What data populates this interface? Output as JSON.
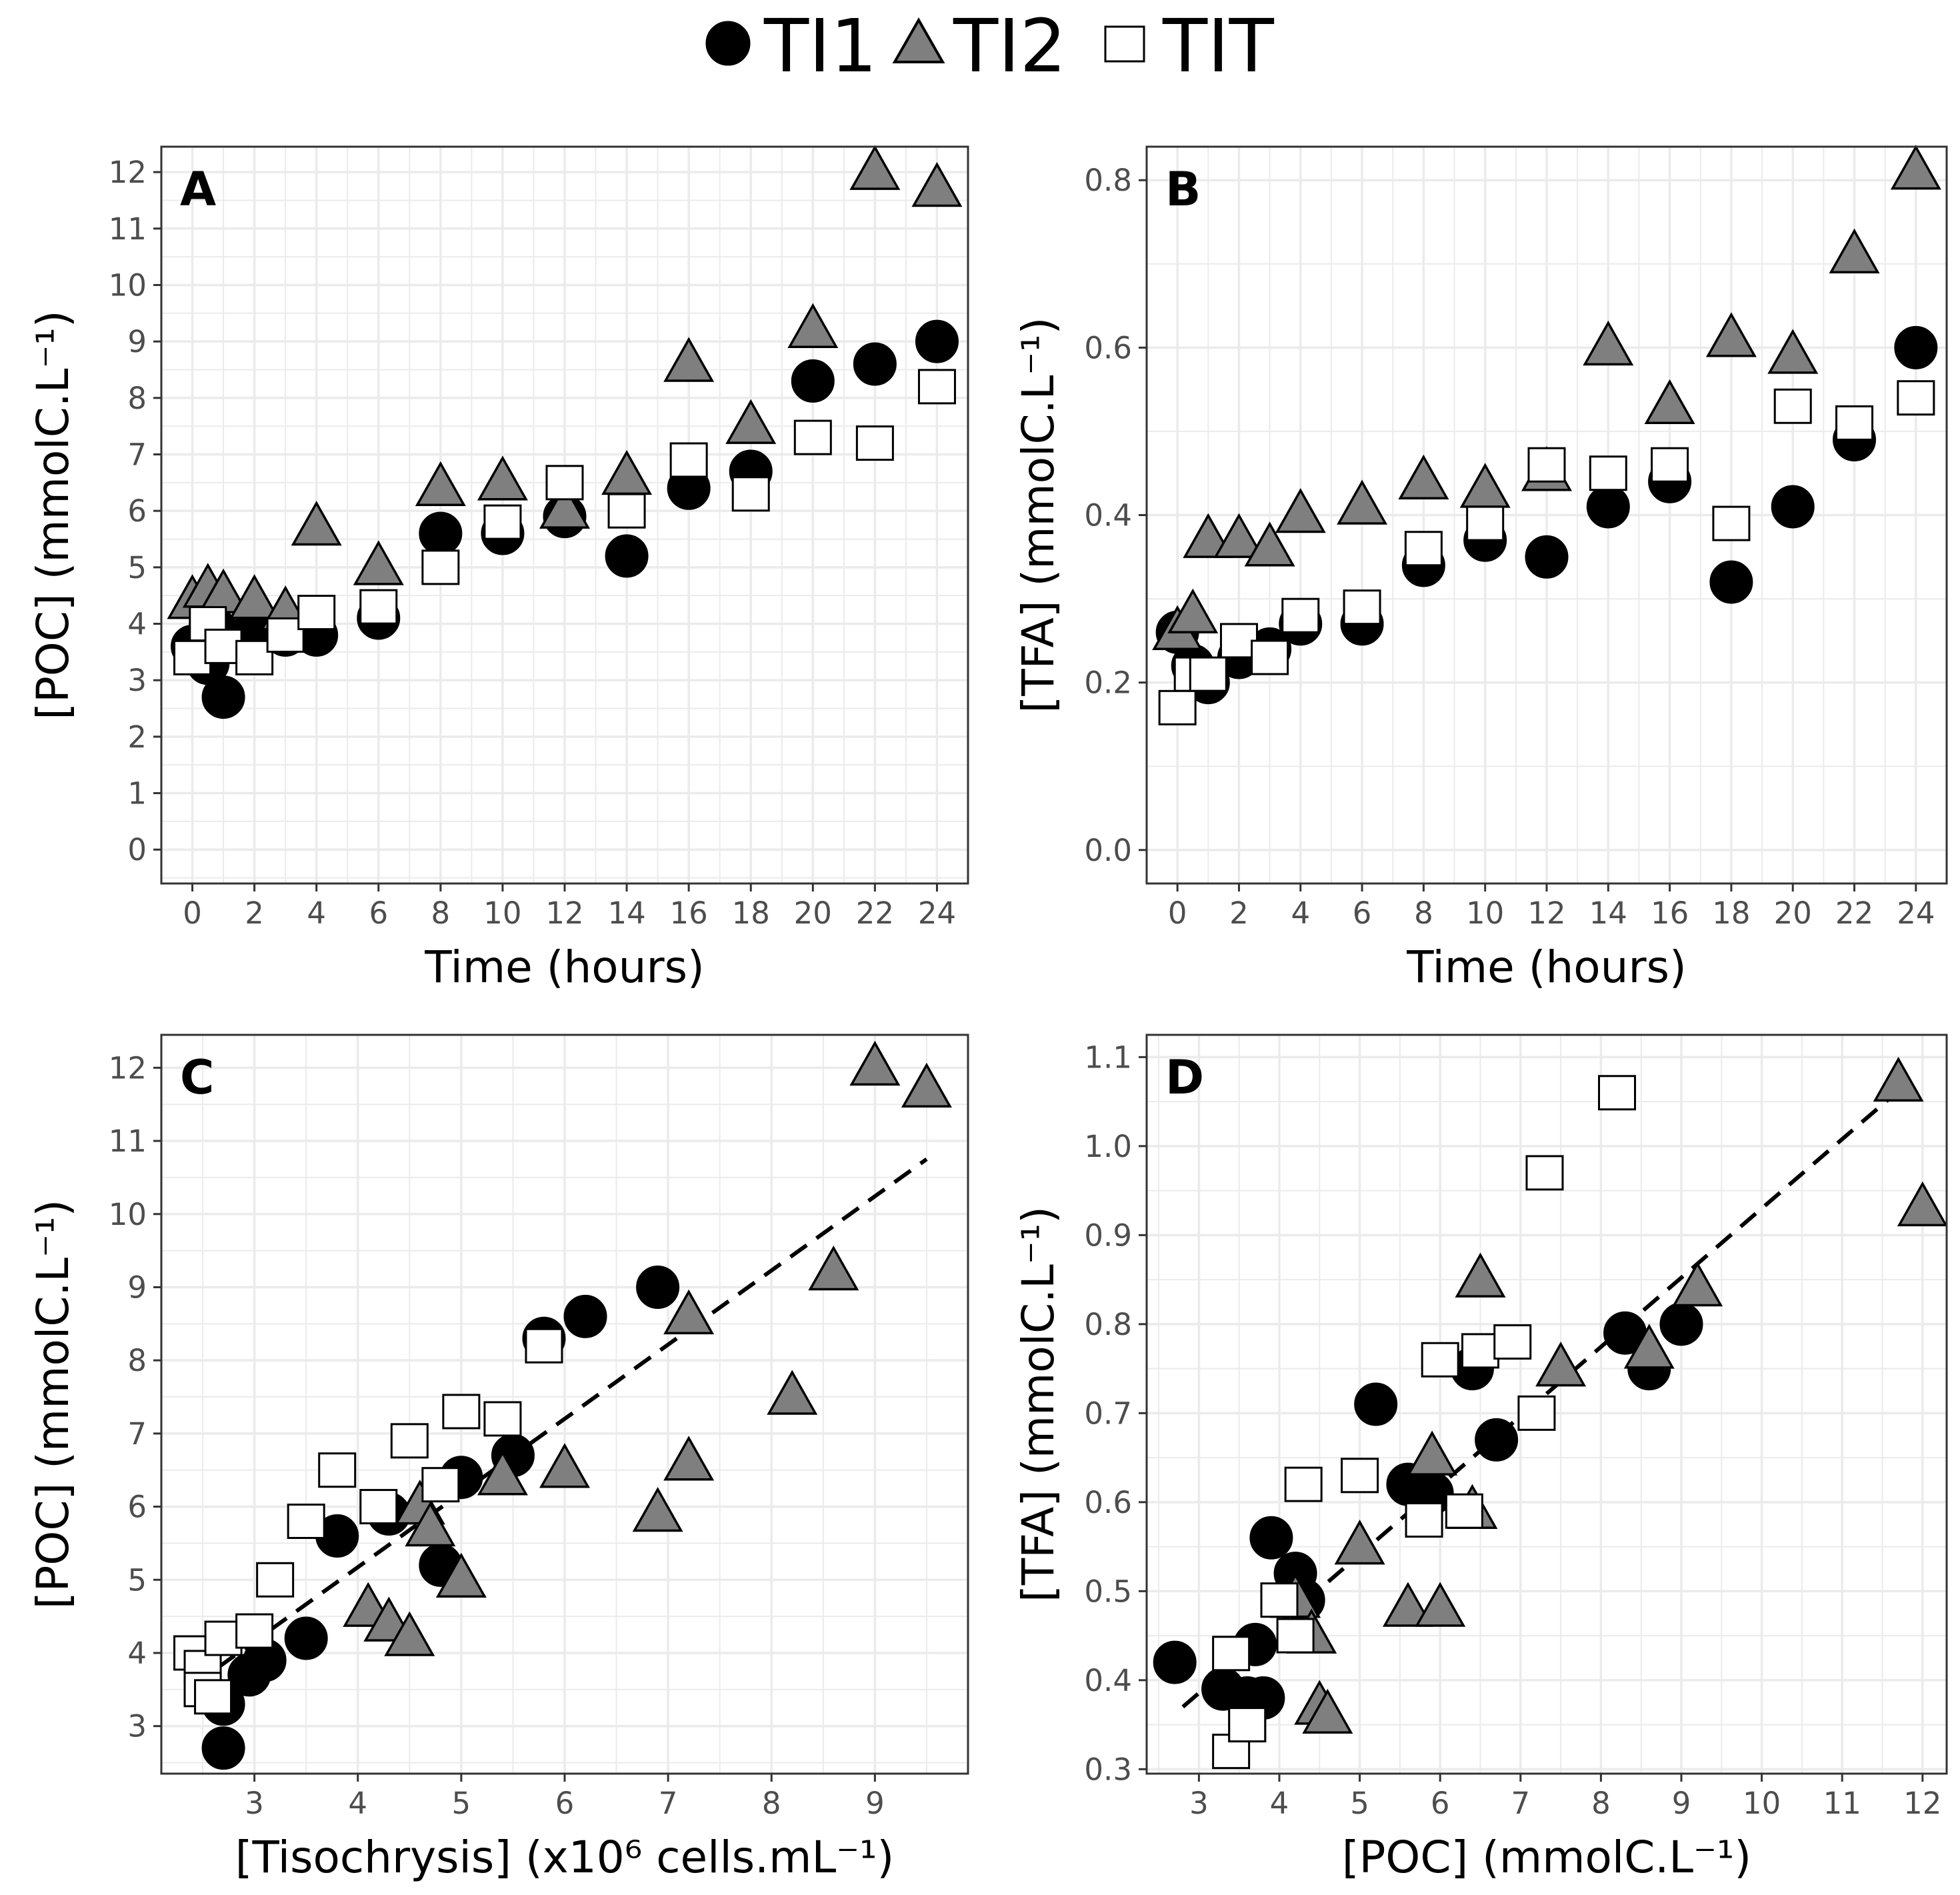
{
  "legend": {
    "entries": [
      {
        "label": "TI1",
        "shape": "circle",
        "fill": "#000000"
      },
      {
        "label": "TI2",
        "shape": "triangle",
        "fill": "#7f7f7f"
      },
      {
        "label": "TIT",
        "shape": "square",
        "fill": "#ffffff"
      }
    ]
  },
  "colors": {
    "grid": "#ebebeb",
    "panel_border": "#333333",
    "tick": "#4d4d4d",
    "stroke": "#000000"
  },
  "chart_data": [
    {
      "panel": "A",
      "type": "scatter",
      "xlabel": "Time (hours)",
      "ylabel": "[POC] (mmolC.L⁻¹)",
      "xlim": [
        -1,
        25
      ],
      "ylim": [
        -0.6,
        12.45
      ],
      "x_ticks": [
        0,
        2,
        4,
        6,
        8,
        10,
        12,
        14,
        16,
        18,
        20,
        22,
        24
      ],
      "y_ticks": [
        0,
        1,
        2,
        3,
        4,
        5,
        6,
        7,
        8,
        9,
        10,
        11,
        12
      ],
      "series": [
        {
          "name": "TI1",
          "x": [
            0,
            0.5,
            0.75,
            1,
            2,
            3,
            4,
            6,
            8,
            10,
            12,
            14,
            16,
            18,
            20,
            22,
            24
          ],
          "y": [
            3.6,
            3.3,
            3.9,
            2.7,
            3.9,
            3.8,
            3.8,
            4.1,
            5.6,
            5.6,
            5.9,
            5.2,
            6.4,
            6.7,
            8.3,
            8.6,
            9.0
          ]
        },
        {
          "name": "TI2",
          "x": [
            0,
            0.5,
            1,
            2,
            3,
            4,
            6,
            8,
            10,
            12,
            14,
            16,
            18,
            20,
            22,
            24
          ],
          "y": [
            4.4,
            4.6,
            4.5,
            4.4,
            4.2,
            5.7,
            5.0,
            6.4,
            6.5,
            6.0,
            6.6,
            8.6,
            7.5,
            9.2,
            12.0,
            11.7
          ]
        },
        {
          "name": "TIT",
          "x": [
            0,
            0.5,
            1,
            2,
            3,
            4,
            6,
            8,
            10,
            12,
            14,
            16,
            18,
            20,
            22,
            24
          ],
          "y": [
            3.4,
            4.0,
            3.6,
            3.4,
            3.8,
            4.2,
            4.3,
            5.0,
            5.8,
            6.5,
            6.0,
            6.9,
            6.3,
            7.3,
            7.2,
            8.2
          ]
        }
      ]
    },
    {
      "panel": "B",
      "type": "scatter",
      "xlabel": "Time (hours)",
      "ylabel": "[TFA] (mmolC.L⁻¹)",
      "xlim": [
        -1,
        25
      ],
      "ylim": [
        -0.04,
        0.84
      ],
      "x_ticks": [
        0,
        2,
        4,
        6,
        8,
        10,
        12,
        14,
        16,
        18,
        20,
        22,
        24
      ],
      "y_ticks": [
        0.0,
        0.2,
        0.4,
        0.6,
        0.8
      ],
      "y_tick_labels": [
        "0.0",
        "0.2",
        "0.4",
        "0.6",
        "0.8"
      ],
      "series": [
        {
          "name": "TI1",
          "x": [
            0,
            0.5,
            1,
            2,
            3,
            4,
            6,
            8,
            10,
            12,
            14,
            16,
            18,
            20,
            22,
            24
          ],
          "y": [
            0.26,
            0.22,
            0.2,
            0.23,
            0.24,
            0.27,
            0.27,
            0.34,
            0.37,
            0.35,
            0.41,
            0.44,
            0.32,
            0.41,
            0.49,
            0.6
          ]
        },
        {
          "name": "TI2",
          "x": [
            0,
            0.5,
            1,
            2,
            3,
            4,
            6,
            8,
            10,
            12,
            14,
            16,
            18,
            20,
            22,
            24
          ],
          "y": [
            0.26,
            0.28,
            0.37,
            0.37,
            0.36,
            0.4,
            0.41,
            0.44,
            0.43,
            0.45,
            0.6,
            0.53,
            0.61,
            0.59,
            0.71,
            0.81
          ]
        },
        {
          "name": "TIT",
          "x": [
            0,
            0.5,
            1,
            2,
            3,
            4,
            6,
            8,
            10,
            12,
            14,
            16,
            18,
            20,
            22,
            24
          ],
          "y": [
            0.17,
            0.21,
            0.21,
            0.25,
            0.23,
            0.28,
            0.29,
            0.36,
            0.39,
            0.46,
            0.45,
            0.46,
            0.39,
            0.53,
            0.51,
            0.54
          ]
        }
      ]
    },
    {
      "panel": "C",
      "type": "scatter",
      "xlabel": "[Tisochrysis] (x10⁶ cells.mL⁻¹)",
      "ylabel": "[POC] (mmolC.L⁻¹)",
      "xlim": [
        2.1,
        9.9
      ],
      "ylim": [
        2.35,
        12.45
      ],
      "x_ticks": [
        3,
        4,
        5,
        6,
        7,
        8,
        9
      ],
      "y_ticks": [
        3,
        4,
        5,
        6,
        7,
        8,
        9,
        10,
        11,
        12
      ],
      "trendline": {
        "style": "dashed",
        "x": [
          2.4,
          9.5
        ],
        "y": [
          3.55,
          10.75
        ]
      },
      "series": [
        {
          "name": "TI1",
          "x": [
            2.7,
            2.7,
            2.95,
            3.1,
            3.5,
            3.8,
            4.3,
            4.8,
            5.0,
            5.5,
            5.8,
            6.2,
            6.9
          ],
          "y": [
            2.7,
            3.3,
            3.7,
            3.9,
            4.2,
            5.6,
            5.9,
            5.2,
            6.4,
            6.7,
            8.3,
            8.6,
            9.0
          ]
        },
        {
          "name": "TI2",
          "x": [
            4.1,
            4.3,
            4.5,
            4.6,
            4.7,
            5.0,
            5.4,
            6.0,
            6.9,
            7.2,
            7.2,
            8.2,
            8.6,
            9.0,
            9.5
          ],
          "y": [
            4.6,
            4.4,
            4.2,
            6.0,
            5.7,
            5.0,
            6.4,
            6.5,
            5.9,
            6.6,
            8.6,
            7.5,
            9.2,
            12.0,
            11.7
          ]
        },
        {
          "name": "TIT",
          "x": [
            2.4,
            2.5,
            2.5,
            2.6,
            2.7,
            3.0,
            3.2,
            3.5,
            3.8,
            4.2,
            4.5,
            4.8,
            5.0,
            5.4,
            5.8
          ],
          "y": [
            4.0,
            3.8,
            3.5,
            3.4,
            4.2,
            4.3,
            5.0,
            5.8,
            6.5,
            6.0,
            6.9,
            6.3,
            7.3,
            7.2,
            8.2
          ]
        }
      ]
    },
    {
      "panel": "D",
      "type": "scatter",
      "xlabel": "[POC] (mmolC.L⁻¹)",
      "ylabel": "[TFA] (mmolC.L⁻¹)",
      "xlim": [
        2.35,
        12.3
      ],
      "ylim": [
        0.295,
        1.125
      ],
      "x_ticks": [
        3,
        4,
        5,
        6,
        7,
        8,
        9,
        10,
        11,
        12
      ],
      "y_ticks": [
        0.3,
        0.4,
        0.5,
        0.6,
        0.7,
        0.8,
        0.9,
        1.0,
        1.1
      ],
      "y_tick_labels": [
        "0.3",
        "0.4",
        "0.5",
        "0.6",
        "0.7",
        "0.8",
        "0.9",
        "1.0",
        "1.1"
      ],
      "trendline": {
        "style": "dashed",
        "x": [
          2.8,
          11.8
        ],
        "y": [
          0.37,
          1.07
        ]
      },
      "series": [
        {
          "name": "TI1",
          "x": [
            2.7,
            3.3,
            3.6,
            3.7,
            3.8,
            3.9,
            4.2,
            4.3,
            5.2,
            5.6,
            5.9,
            6.4,
            6.7,
            8.3,
            8.6,
            9.0
          ],
          "y": [
            0.42,
            0.39,
            0.38,
            0.44,
            0.38,
            0.56,
            0.52,
            0.49,
            0.71,
            0.62,
            0.61,
            0.75,
            0.67,
            0.79,
            0.75,
            0.8
          ]
        },
        {
          "name": "TI2",
          "x": [
            4.2,
            4.4,
            4.5,
            4.6,
            5.0,
            5.6,
            5.9,
            6.0,
            6.4,
            6.5,
            7.5,
            8.6,
            9.2,
            11.7,
            12.0
          ],
          "y": [
            0.49,
            0.45,
            0.37,
            0.36,
            0.55,
            0.48,
            0.65,
            0.48,
            0.59,
            0.85,
            0.75,
            0.77,
            0.84,
            1.07,
            0.93
          ]
        },
        {
          "name": "TIT",
          "x": [
            3.4,
            3.4,
            3.6,
            3.6,
            4.0,
            4.2,
            4.3,
            5.0,
            5.8,
            6.0,
            6.3,
            6.5,
            6.9,
            7.2,
            7.3,
            8.2
          ],
          "y": [
            0.32,
            0.43,
            0.35,
            0.35,
            0.49,
            0.45,
            0.62,
            0.63,
            0.58,
            0.76,
            0.59,
            0.77,
            0.78,
            0.7,
            0.97,
            1.06
          ]
        }
      ]
    }
  ]
}
